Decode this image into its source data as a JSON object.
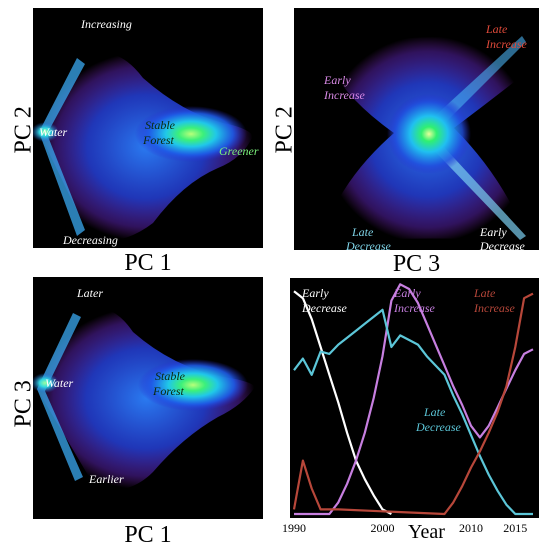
{
  "chart_data": [
    {
      "type": "scatter",
      "xlabel": "PC 1",
      "ylabel": "PC 2",
      "annotations": [
        {
          "key": "increasing",
          "text": "Increasing",
          "color": "#ffffff"
        },
        {
          "key": "water",
          "text": "Water",
          "color": "#ffffff"
        },
        {
          "key": "stable",
          "text": [
            "Stable",
            "Forest"
          ],
          "color": "#0b2a0b"
        },
        {
          "key": "greener",
          "text": "Greener",
          "color": "#7cf27c"
        },
        {
          "key": "decreasing",
          "text": "Decreasing",
          "color": "#ffffff"
        }
      ]
    },
    {
      "type": "scatter",
      "xlabel": "PC 3",
      "ylabel": "PC 2",
      "annotations": [
        {
          "key": "late-increase",
          "text": [
            "Late",
            "Increase"
          ],
          "color": "#e04a3a"
        },
        {
          "key": "early-increase",
          "text": [
            "Early",
            "Increase"
          ],
          "color": "#d98ae6"
        },
        {
          "key": "late-decrease",
          "text": [
            "Late",
            "Decrease"
          ],
          "color": "#7fd4e8"
        },
        {
          "key": "early-decrease",
          "text": [
            "Early",
            "Decrease"
          ],
          "color": "#ffffff"
        }
      ]
    },
    {
      "type": "scatter",
      "xlabel": "PC 1",
      "ylabel": "PC 3",
      "annotations": [
        {
          "key": "later",
          "text": "Later",
          "color": "#ffffff"
        },
        {
          "key": "water",
          "text": "Water",
          "color": "#ffffff"
        },
        {
          "key": "stable",
          "text": [
            "Stable",
            "Forest"
          ],
          "color": "#0b2a0b"
        },
        {
          "key": "earlier",
          "text": "Earlier",
          "color": "#ffffff"
        }
      ]
    },
    {
      "type": "line",
      "xlabel": "Year",
      "xlim": [
        1990,
        2017
      ],
      "ylim": [
        0,
        1
      ],
      "xticks": [
        "1990",
        "2000",
        "2010",
        "2015"
      ],
      "series": [
        {
          "name": "Early Decrease",
          "color": "#ffffff",
          "x": [
            1990,
            1991,
            1992,
            1993,
            1994,
            1995,
            1996,
            1997,
            1998,
            1999,
            2000,
            2001
          ],
          "y": [
            0.96,
            0.93,
            0.84,
            0.72,
            0.6,
            0.48,
            0.35,
            0.23,
            0.15,
            0.08,
            0.02,
            0.0
          ]
        },
        {
          "name": "Early Increase",
          "color": "#c77fe0",
          "x": [
            1990,
            1994,
            1995,
            1996,
            1997,
            1998,
            1999,
            2000,
            2001,
            2002,
            2003,
            2004,
            2005,
            2006,
            2007,
            2008,
            2009,
            2010,
            2011,
            2012,
            2013,
            2014,
            2015,
            2016,
            2017
          ],
          "y": [
            0.0,
            0.0,
            0.05,
            0.13,
            0.23,
            0.35,
            0.5,
            0.68,
            0.92,
            0.99,
            0.97,
            0.91,
            0.82,
            0.73,
            0.64,
            0.55,
            0.47,
            0.38,
            0.33,
            0.38,
            0.46,
            0.54,
            0.62,
            0.69,
            0.71
          ]
        },
        {
          "name": "Late Decrease",
          "color": "#5cc6d8",
          "x": [
            1990,
            1991,
            1992,
            1993,
            1994,
            1995,
            1996,
            1997,
            1998,
            1999,
            2000,
            2001,
            2002,
            2003,
            2004,
            2005,
            2006,
            2007,
            2008,
            2009,
            2010,
            2011,
            2012,
            2013,
            2014,
            2015,
            2016,
            2017
          ],
          "y": [
            0.62,
            0.67,
            0.6,
            0.7,
            0.69,
            0.73,
            0.76,
            0.79,
            0.82,
            0.85,
            0.88,
            0.72,
            0.77,
            0.75,
            0.73,
            0.68,
            0.64,
            0.6,
            0.51,
            0.43,
            0.34,
            0.25,
            0.17,
            0.1,
            0.04,
            0.0,
            0.0,
            0.0
          ]
        },
        {
          "name": "Late Increase",
          "color": "#b7473a",
          "x": [
            1990,
            1991,
            1992,
            1993,
            1994,
            1995,
            2007,
            2008,
            2009,
            2010,
            2011,
            2012,
            2013,
            2014,
            2015,
            2016,
            2017
          ],
          "y": [
            0.02,
            0.23,
            0.11,
            0.02,
            0.02,
            0.02,
            0.0,
            0.05,
            0.12,
            0.2,
            0.27,
            0.35,
            0.44,
            0.55,
            0.72,
            0.93,
            0.95
          ]
        }
      ],
      "annotations": [
        {
          "key": "early-decrease",
          "text": [
            "Early",
            "Decrease"
          ],
          "color": "#ffffff"
        },
        {
          "key": "early-increase",
          "text": [
            "Early",
            "Increase"
          ],
          "color": "#c77fe0"
        },
        {
          "key": "late-increase",
          "text": [
            "Late",
            "Increase"
          ],
          "color": "#b7473a"
        },
        {
          "key": "late-decrease",
          "text": [
            "Late",
            "Decrease"
          ],
          "color": "#5cc6d8"
        }
      ]
    }
  ]
}
